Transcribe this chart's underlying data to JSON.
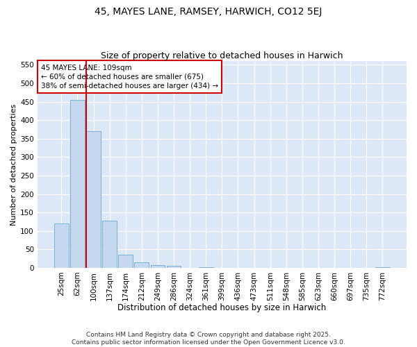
{
  "title": "45, MAYES LANE, RAMSEY, HARWICH, CO12 5EJ",
  "subtitle": "Size of property relative to detached houses in Harwich",
  "xlabel": "Distribution of detached houses by size in Harwich",
  "ylabel": "Number of detached properties",
  "categories": [
    "25sqm",
    "62sqm",
    "100sqm",
    "137sqm",
    "174sqm",
    "212sqm",
    "249sqm",
    "286sqm",
    "324sqm",
    "361sqm",
    "399sqm",
    "436sqm",
    "473sqm",
    "511sqm",
    "548sqm",
    "585sqm",
    "623sqm",
    "660sqm",
    "697sqm",
    "735sqm",
    "772sqm"
  ],
  "values": [
    120,
    455,
    370,
    127,
    35,
    15,
    8,
    5,
    0,
    1,
    0,
    0,
    0,
    0,
    0,
    0,
    0,
    0,
    0,
    0,
    2
  ],
  "bar_color": "#c5d8ef",
  "bar_edge_color": "#7bafd4",
  "vline_x_index": 2,
  "vline_color": "#cc0000",
  "annotation_line1": "45 MAYES LANE: 109sqm",
  "annotation_line2": "← 60% of detached houses are smaller (675)",
  "annotation_line3": "38% of semi-detached houses are larger (434) →",
  "annotation_box_color": "#ffffff",
  "annotation_box_edge_color": "#cc0000",
  "ylim": [
    0,
    560
  ],
  "yticks": [
    0,
    50,
    100,
    150,
    200,
    250,
    300,
    350,
    400,
    450,
    500,
    550
  ],
  "bg_color": "#dce8f5",
  "grid_color": "#ffffff",
  "fig_bg_color": "#ffffff",
  "footer": "Contains HM Land Registry data © Crown copyright and database right 2025.\nContains public sector information licensed under the Open Government Licence v3.0.",
  "title_fontsize": 10,
  "subtitle_fontsize": 9,
  "xlabel_fontsize": 8.5,
  "ylabel_fontsize": 8,
  "tick_fontsize": 7.5,
  "footer_fontsize": 6.5
}
